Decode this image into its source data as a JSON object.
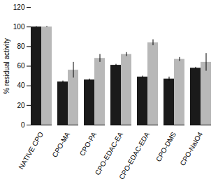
{
  "chart_data": {
    "type": "bar",
    "categories": [
      "NATIVE CPO",
      "CPO-MA",
      "CPO-PA",
      "CPO-EDAC-EA",
      "CPO-EDAC-EDA",
      "CPO-DMS",
      "CPO-NaIO4"
    ],
    "series": [
      {
        "color": "#1a1a1a",
        "values": [
          100,
          44,
          46,
          61,
          49,
          47,
          58
        ],
        "errors": [
          0.5,
          1,
          1,
          1,
          1,
          2,
          1
        ]
      },
      {
        "color": "#b8b8b8",
        "values": [
          100,
          56,
          68,
          72,
          84,
          67,
          64
        ],
        "errors": [
          0.5,
          8,
          4,
          2,
          3,
          2,
          9
        ]
      }
    ],
    "ylabel": "% residual activity",
    "ylim": [
      0,
      120
    ],
    "yticks": [
      0,
      20,
      40,
      60,
      80,
      100,
      120
    ],
    "grid": false
  }
}
